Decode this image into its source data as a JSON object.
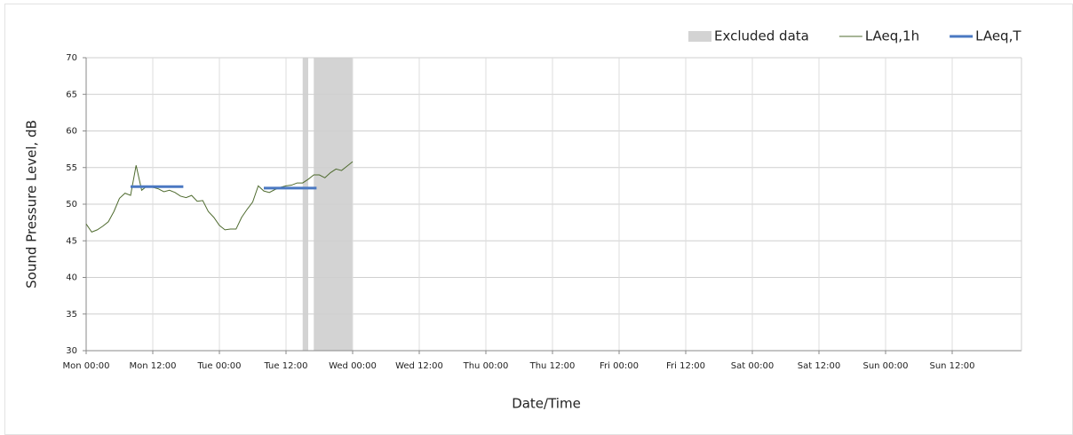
{
  "chart_data": {
    "type": "line",
    "xlabel": "Date/Time",
    "ylabel": "Sound Pressure Level, dB",
    "xlim": [
      0,
      168
    ],
    "ylim": [
      30,
      70
    ],
    "xticks": [
      {
        "value": 0,
        "label": "Mon 00:00"
      },
      {
        "value": 12,
        "label": "Mon 12:00"
      },
      {
        "value": 24,
        "label": "Tue 00:00"
      },
      {
        "value": 36,
        "label": "Tue 12:00"
      },
      {
        "value": 48,
        "label": "Wed 00:00"
      },
      {
        "value": 60,
        "label": "Wed 12:00"
      },
      {
        "value": 72,
        "label": "Thu 00:00"
      },
      {
        "value": 84,
        "label": "Thu 12:00"
      },
      {
        "value": 96,
        "label": "Fri 00:00"
      },
      {
        "value": 108,
        "label": "Fri 12:00"
      },
      {
        "value": 120,
        "label": "Sat 00:00"
      },
      {
        "value": 132,
        "label": "Sat 12:00"
      },
      {
        "value": 144,
        "label": "Sun 00:00"
      },
      {
        "value": 156,
        "label": "Sun 12:00"
      }
    ],
    "yticks": [
      30,
      35,
      40,
      45,
      50,
      55,
      60,
      65,
      70
    ],
    "grid": true,
    "legend": "top-right",
    "excluded": {
      "name": "Excluded data",
      "color": "#d3d3d3",
      "ranges": [
        [
          39,
          40
        ],
        [
          41,
          48
        ]
      ]
    },
    "series": [
      {
        "name": "LAeq,1h",
        "color": "#4f6b2f",
        "width": 1,
        "x": [
          0,
          1,
          2,
          3,
          4,
          5,
          6,
          7,
          8,
          9,
          10,
          11,
          12,
          13,
          14,
          15,
          16,
          17,
          18,
          19,
          20,
          21,
          22,
          23,
          24,
          25,
          26,
          27,
          28,
          29,
          30,
          31,
          32,
          33,
          34,
          35,
          36,
          37,
          38,
          39,
          40,
          41,
          42,
          43,
          44,
          45,
          46,
          47,
          48
        ],
        "values": [
          47.3,
          46.2,
          46.5,
          47,
          47.6,
          49,
          50.8,
          51.5,
          51.2,
          55.3,
          51.9,
          52.5,
          52.3,
          52.1,
          51.7,
          51.9,
          51.6,
          51.1,
          50.9,
          51.2,
          50.4,
          50.5,
          49,
          48.2,
          47.1,
          46.5,
          46.6,
          46.6,
          48.2,
          49.3,
          50.3,
          52.5,
          51.8,
          51.6,
          52,
          52.3,
          52.5,
          52.6,
          52.9,
          52.9,
          53.4,
          54,
          54,
          53.6,
          54.3,
          54.8,
          54.6,
          55.2,
          55.8
        ]
      },
      {
        "name": "LAeq,T",
        "color": "#4a78c2",
        "width": 3,
        "x": [
          8,
          17.5,
          null,
          32,
          41.5
        ],
        "values": [
          52.4,
          52.4,
          null,
          52.2,
          52.2
        ]
      }
    ]
  }
}
